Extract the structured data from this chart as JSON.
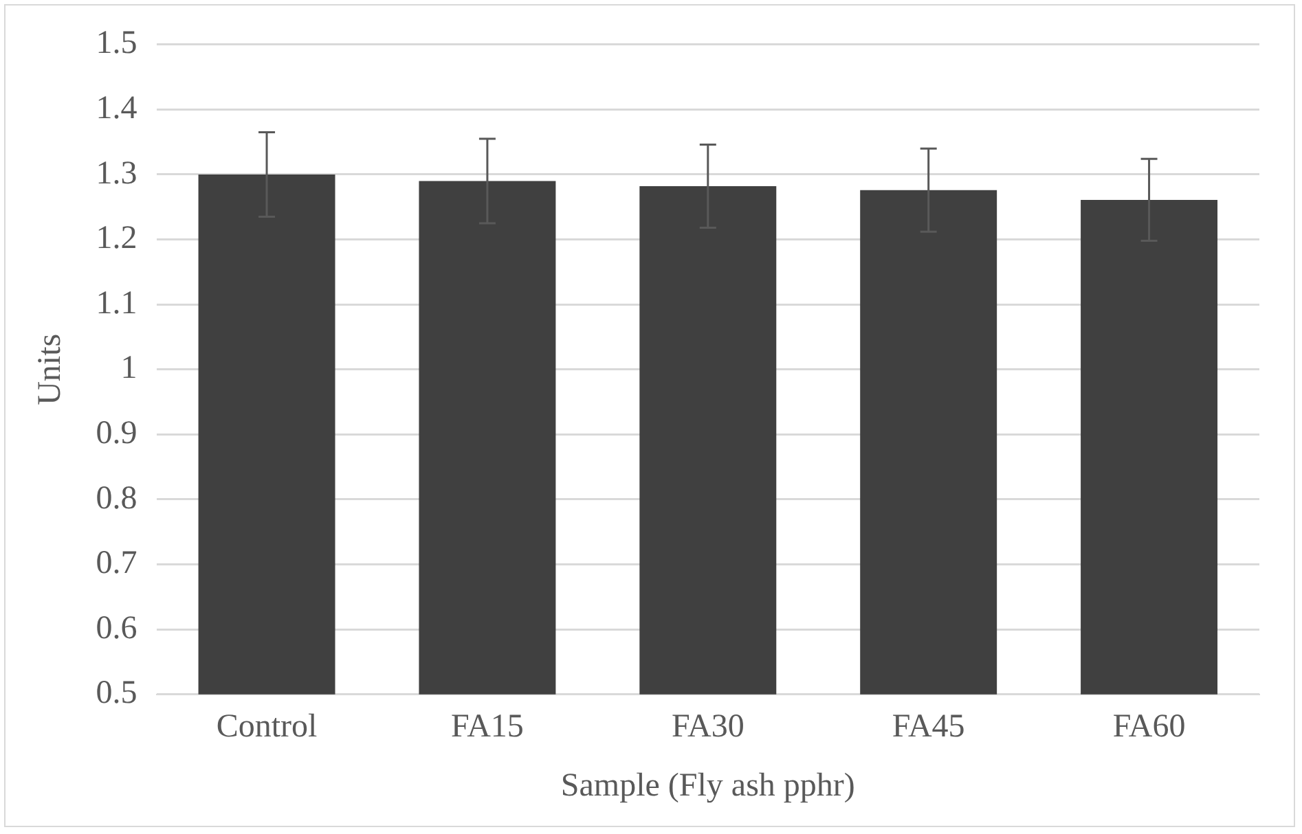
{
  "chart_data": {
    "type": "bar",
    "xlabel": "Sample (Fly ash pphr)",
    "ylabel": "Units",
    "categories": [
      "Control",
      "FA15",
      "FA30",
      "FA45",
      "FA60"
    ],
    "values": [
      1.3,
      1.29,
      1.282,
      1.276,
      1.261
    ],
    "errors": [
      0.065,
      0.065,
      0.064,
      0.064,
      0.063
    ],
    "color": "#404040",
    "ylim": [
      0.5,
      1.5
    ],
    "yticks": [
      0.5,
      0.6,
      0.7,
      0.8,
      0.9,
      1,
      1.1,
      1.2,
      1.3,
      1.4,
      1.5
    ],
    "grid": "y"
  }
}
